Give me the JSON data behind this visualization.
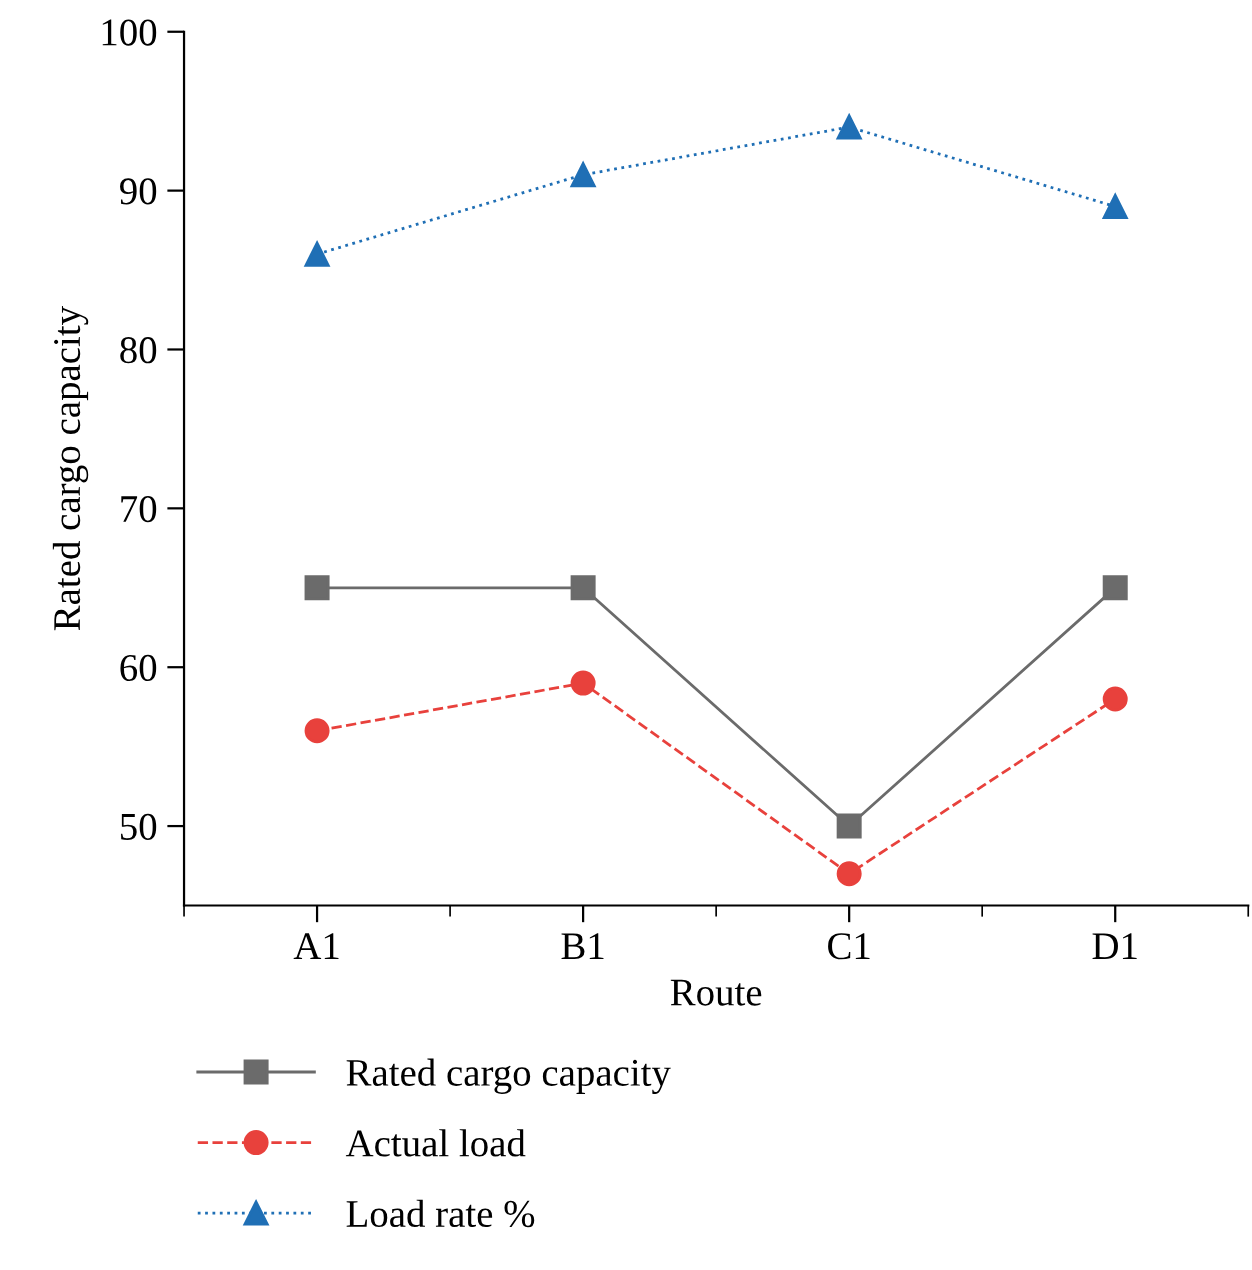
{
  "chart_data": {
    "type": "line",
    "xlabel": "Route",
    "ylabel": "Rated cargo capacity",
    "categories": [
      "A1",
      "B1",
      "C1",
      "D1"
    ],
    "series": [
      {
        "name": "Rated cargo capacity",
        "color": "#6b6b6b",
        "marker": "square",
        "line_style": "solid",
        "values": [
          65,
          65,
          50,
          65
        ]
      },
      {
        "name": "Actual load",
        "color": "#e8413c",
        "marker": "circle",
        "line_style": "dashed",
        "values": [
          56,
          59,
          47,
          58
        ]
      },
      {
        "name": "Load rate %",
        "color": "#1f6fb5",
        "marker": "triangle",
        "line_style": "dotted",
        "values": [
          86,
          91,
          94,
          89
        ]
      }
    ],
    "ylim": [
      45,
      100
    ],
    "yticks": [
      50,
      60,
      70,
      80,
      90,
      100
    ],
    "grid": false,
    "legend": "bottom"
  }
}
